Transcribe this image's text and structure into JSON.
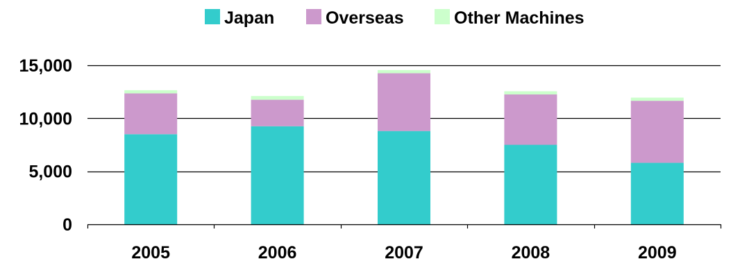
{
  "chart_data": {
    "type": "bar",
    "stacked": true,
    "categories": [
      "2005",
      "2006",
      "2007",
      "2008",
      "2009"
    ],
    "series": [
      {
        "name": "Japan",
        "color": "#33CCCC",
        "values": [
          8500,
          9250,
          8800,
          7500,
          5800
        ]
      },
      {
        "name": "Overseas",
        "color": "#CC99CC",
        "values": [
          3850,
          2500,
          5450,
          4750,
          5850
        ]
      },
      {
        "name": "Other Machines",
        "color": "#CCFFCC",
        "values": [
          300,
          350,
          300,
          300,
          300
        ]
      }
    ],
    "ylim": [
      0,
      15000
    ],
    "yticks": [
      0,
      5000,
      10000,
      15000
    ],
    "ytick_labels": [
      "0",
      "5,000",
      "10,000",
      "15,000"
    ],
    "grid": true,
    "legend_position": "top"
  }
}
